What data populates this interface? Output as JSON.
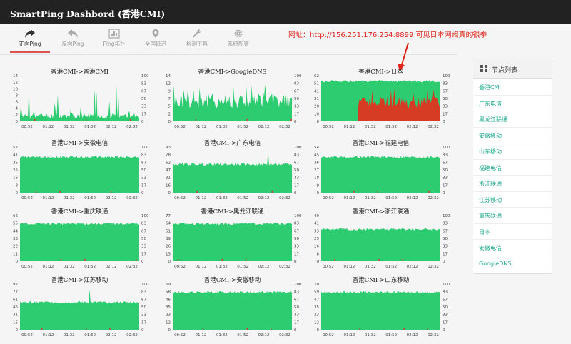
{
  "app": {
    "title": "SmartPing Dashbord (香港CMI)"
  },
  "toolbar": {
    "items": [
      {
        "label": "正向Ping",
        "icon": "share-icon",
        "active": true
      },
      {
        "label": "反向Ping",
        "icon": "reply-icon",
        "active": false
      },
      {
        "label": "Ping拓扑",
        "icon": "chart-icon",
        "active": false
      },
      {
        "label": "全国延迟",
        "icon": "map-marker-icon",
        "active": false
      },
      {
        "label": "检测工具",
        "icon": "wrench-icon",
        "active": false
      },
      {
        "label": "系统配置",
        "icon": "gear-icon",
        "active": false
      }
    ]
  },
  "annotation": {
    "text": "网址：http://156.251.176.254:8899 可见日本网络真的很拳",
    "color": "#e0261b"
  },
  "sidebar": {
    "title": "节点列表",
    "items": [
      "香港CMI",
      "广东电信",
      "黑龙江联通",
      "安徽移动",
      "山东移动",
      "福建电信",
      "浙江联通",
      "江苏移动",
      "重庆联通",
      "日本",
      "安徽电信",
      "GoogleDNS"
    ]
  },
  "colors": {
    "green": "#2ecc71",
    "red": "#d63b23",
    "nav_bg": "#222222",
    "accent": "#d9534f"
  },
  "charts": [
    {
      "title": "香港CMI->香港CMI",
      "left_ticks": [
        "14",
        "12",
        "10",
        "8",
        "6",
        "4",
        "2",
        "0"
      ],
      "right_ticks": [
        "100",
        "83",
        "67",
        "50",
        "33",
        "17",
        "0"
      ],
      "x_ticks": [
        "00:52",
        "01:12",
        "01:32",
        "01:52",
        "02:12",
        "02:32"
      ],
      "style": "spiky",
      "level": 0.1
    },
    {
      "title": "香港CMI->GoogleDNS",
      "left_ticks": [
        "14",
        "12",
        "9",
        "7",
        "5",
        "2",
        "0"
      ],
      "right_ticks": [
        "100",
        "83",
        "67",
        "50",
        "33",
        "17",
        "0"
      ],
      "x_ticks": [
        "00:52",
        "01:12",
        "01:32",
        "01:52",
        "02:12",
        "02:32"
      ],
      "style": "noisy",
      "level": 0.45
    },
    {
      "title": "香港CMI->日本",
      "left_ticks": [
        "62",
        "51",
        "41",
        "31",
        "20",
        "10",
        "0"
      ],
      "right_ticks": [
        "100",
        "83",
        "67",
        "50",
        "33",
        "17",
        "0"
      ],
      "x_ticks": [
        "00:52",
        "01:12",
        "01:32",
        "01:52",
        "02:12",
        "02:32"
      ],
      "style": "loss",
      "level": 0.88
    },
    {
      "title": "香港CMI->安徽电信",
      "left_ticks": [
        "52",
        "41",
        "35",
        "25",
        "16",
        "8",
        "0"
      ],
      "right_ticks": [
        "100",
        "83",
        "67",
        "50",
        "33",
        "17",
        "0"
      ],
      "x_ticks": [
        "00:52",
        "01:12",
        "01:32",
        "01:52",
        "02:12",
        "02:32"
      ],
      "style": "flat",
      "level": 0.78
    },
    {
      "title": "香港CMI->广东电信",
      "left_ticks": [
        "93",
        "78",
        "62",
        "47",
        "31",
        "16",
        "0"
      ],
      "right_ticks": [
        "100",
        "83",
        "67",
        "50",
        "33",
        "17",
        "0"
      ],
      "x_ticks": [
        "00:52",
        "01:12",
        "01:32",
        "01:52",
        "02:12",
        "02:32"
      ],
      "style": "flat",
      "level": 0.62
    },
    {
      "title": "香港CMI->福建电信",
      "left_ticks": [
        "54",
        "45",
        "36",
        "27",
        "18",
        "9",
        "0"
      ],
      "right_ticks": [
        "100",
        "83",
        "67",
        "50",
        "33",
        "17",
        "0"
      ],
      "x_ticks": [
        "00:52",
        "01:12",
        "01:32",
        "01:52",
        "02:12",
        "02:32"
      ],
      "style": "flat",
      "level": 0.78
    },
    {
      "title": "香港CMI->重庆联通",
      "left_ticks": [
        "66",
        "55",
        "44",
        "33",
        "22",
        "11",
        "0"
      ],
      "right_ticks": [
        "100",
        "83",
        "67",
        "50",
        "33",
        "17",
        "0"
      ],
      "x_ticks": [
        "00:52",
        "01:12",
        "01:32",
        "01:52",
        "02:12",
        "02:32"
      ],
      "style": "flat",
      "level": 0.82
    },
    {
      "title": "香港CMI->黑龙江联通",
      "left_ticks": [
        "77",
        "64",
        "51",
        "39",
        "26",
        "13",
        "0"
      ],
      "right_ticks": [
        "100",
        "83",
        "67",
        "50",
        "33",
        "17",
        "0"
      ],
      "x_ticks": [
        "00:52",
        "01:12",
        "01:32",
        "01:52",
        "02:12",
        "02:32"
      ],
      "style": "flat",
      "level": 0.82
    },
    {
      "title": "香港CMI->浙江联通",
      "left_ticks": [
        "49",
        "41",
        "33",
        "25",
        "16",
        "8",
        "0"
      ],
      "right_ticks": [
        "100",
        "83",
        "67",
        "50",
        "33",
        "17",
        "0"
      ],
      "x_ticks": [
        "00:52",
        "01:12",
        "01:32",
        "01:52",
        "02:12",
        "02:32"
      ],
      "style": "flat",
      "level": 0.7
    },
    {
      "title": "香港CMI->江苏移动",
      "left_ticks": [
        "92",
        "77",
        "61",
        "46",
        "31",
        "15",
        "0"
      ],
      "right_ticks": [
        "100",
        "83",
        "67",
        "50",
        "33",
        "17",
        "0"
      ],
      "x_ticks": [
        "00:52",
        "01:12",
        "01:32",
        "01:52",
        "02:12",
        "02:32"
      ],
      "style": "flat",
      "level": 0.6
    },
    {
      "title": "香港CMI->安徽移动",
      "left_ticks": [
        "69",
        "58",
        "46",
        "35",
        "23",
        "12",
        "0"
      ],
      "right_ticks": [
        "100",
        "83",
        "67",
        "50",
        "33",
        "17",
        "0"
      ],
      "x_ticks": [
        "00:52",
        "01:12",
        "01:32",
        "01:52",
        "02:12",
        "02:32"
      ],
      "style": "flat",
      "level": 0.82
    },
    {
      "title": "香港CMI->山东移动",
      "left_ticks": [
        "70",
        "59",
        "47",
        "35",
        "23",
        "12",
        "0"
      ],
      "right_ticks": [
        "100",
        "83",
        "67",
        "50",
        "33",
        "17",
        "0"
      ],
      "x_ticks": [
        "00:52",
        "01:12",
        "01:32",
        "01:52",
        "02:12",
        "02:32"
      ],
      "style": "flat",
      "level": 0.82
    }
  ]
}
